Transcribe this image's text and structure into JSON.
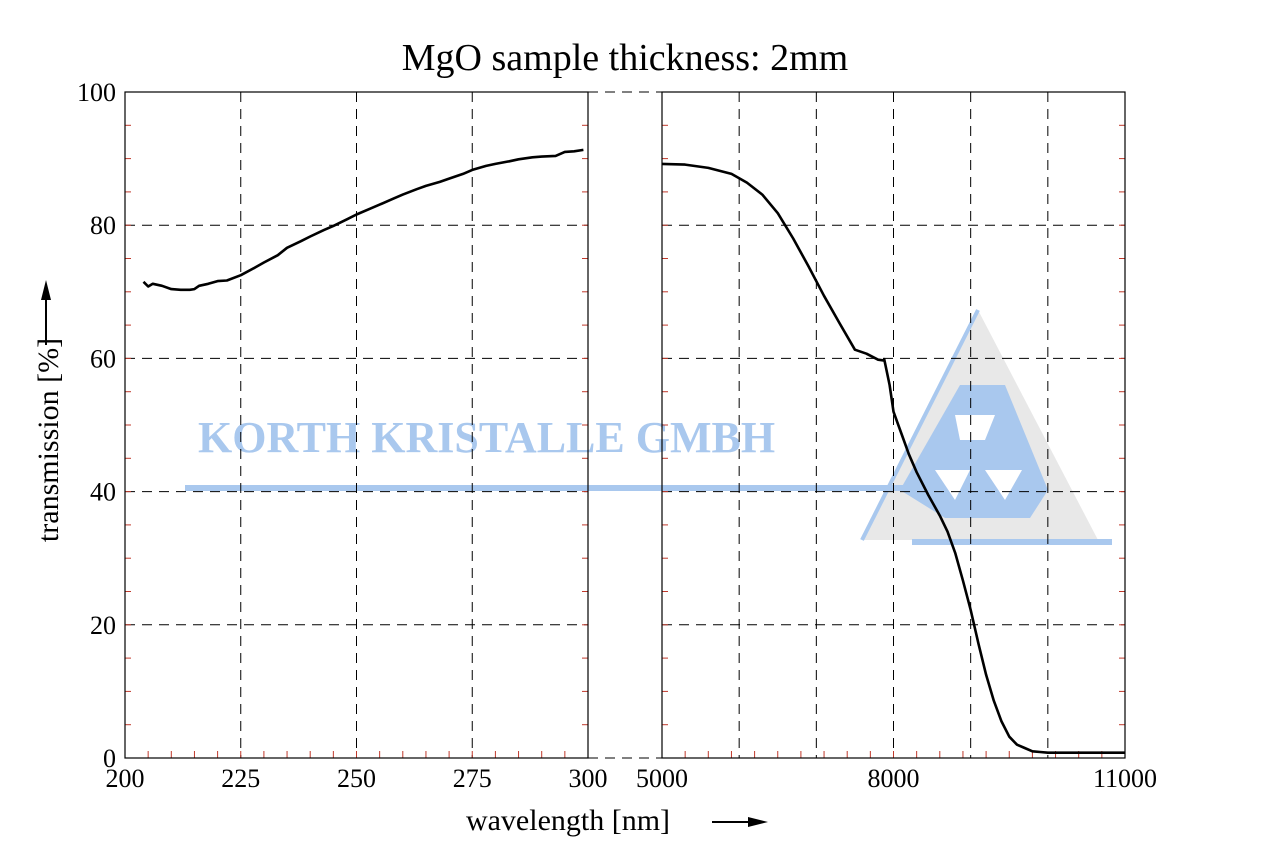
{
  "chart_data": {
    "type": "line",
    "title": "MgO sample thickness: 2mm",
    "xlabel": "wavelength [nm]",
    "ylabel": "transmission [%]",
    "ylim": [
      0,
      100
    ],
    "yticks": [
      "0",
      "20",
      "40",
      "60",
      "80",
      "100"
    ],
    "yticks_values": [
      0,
      20,
      40,
      60,
      80,
      100
    ],
    "grid": true,
    "panels": [
      {
        "name": "uv",
        "xlim": [
          200,
          300
        ],
        "xticks": [
          "200",
          "225",
          "250",
          "275",
          "300"
        ],
        "xticks_values": [
          200,
          225,
          250,
          275,
          300
        ],
        "series": [
          {
            "x": [
              204,
              205,
              206,
              208,
              210,
              212,
              214,
              215,
              216,
              218,
              220,
              222,
              225,
              228,
              230,
              233,
              235,
              238,
              240,
              243,
              245,
              248,
              250,
              253,
              255,
              258,
              260,
              263,
              265,
              268,
              270,
              273,
              275,
              278,
              280,
              283,
              285,
              288,
              290,
              293,
              295,
              297,
              299
            ],
            "y": [
              71.5,
              70.8,
              71.2,
              70.9,
              70.4,
              70.3,
              70.3,
              70.4,
              70.9,
              71.2,
              71.6,
              71.7,
              72.5,
              73.6,
              74.4,
              75.5,
              76.6,
              77.6,
              78.3,
              79.3,
              79.9,
              80.9,
              81.6,
              82.5,
              83.1,
              84.0,
              84.6,
              85.4,
              85.9,
              86.5,
              87.0,
              87.7,
              88.3,
              88.9,
              89.2,
              89.6,
              89.9,
              90.2,
              90.3,
              90.4,
              91.0,
              91.1,
              91.3
            ]
          }
        ]
      },
      {
        "name": "ir",
        "xlim": [
          5000,
          11000
        ],
        "xticks": [
          "5000",
          "8000",
          "11000"
        ],
        "xticks_values": [
          5000,
          8000,
          11000
        ],
        "grid_x": [
          6000,
          7000,
          8000,
          9000,
          10000
        ],
        "series": [
          {
            "x": [
              5000,
              5300,
              5600,
              5900,
              6100,
              6300,
              6500,
              6700,
              6900,
              7100,
              7300,
              7500,
              7650,
              7800,
              7870,
              7880,
              7950,
              8000,
              8100,
              8200,
              8300,
              8450,
              8600,
              8700,
              8800,
              8900,
              9000,
              9100,
              9200,
              9300,
              9400,
              9500,
              9600,
              9700,
              9800,
              9900,
              10000,
              10100,
              10200,
              10400,
              10600,
              10800,
              11000
            ],
            "y": [
              89.2,
              89.1,
              88.6,
              87.7,
              86.4,
              84.6,
              81.8,
              78.0,
              73.8,
              69.4,
              65.3,
              61.3,
              60.7,
              59.8,
              59.7,
              59.9,
              56.0,
              52.0,
              48.8,
              45.6,
              42.9,
              39.5,
              36.4,
              34.0,
              30.8,
              26.6,
              22.2,
              17.2,
              12.5,
              8.6,
              5.5,
              3.2,
              2.0,
              1.5,
              1.0,
              0.9,
              0.8,
              0.8,
              0.8,
              0.8,
              0.8,
              0.8,
              0.8
            ]
          }
        ]
      }
    ]
  },
  "watermark": {
    "text": "KORTH KRISTALLE GMBH",
    "colors": {
      "blue": "#a9c8ee",
      "gray": "#e8e8e8"
    }
  }
}
